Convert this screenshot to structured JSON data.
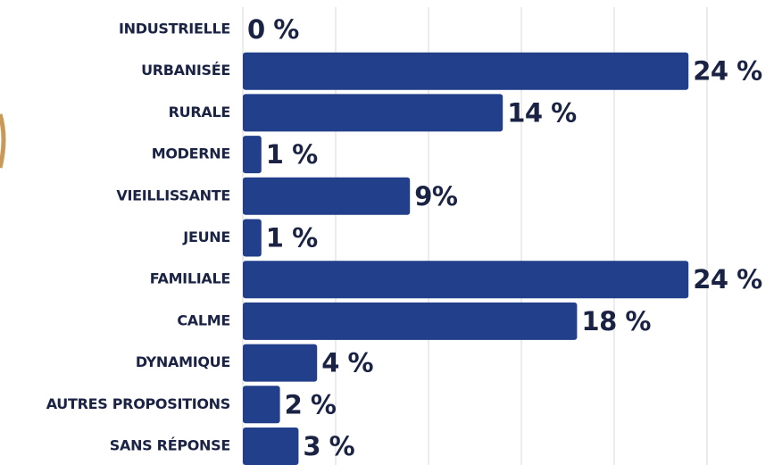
{
  "chart_data": {
    "type": "bar",
    "orientation": "horizontal",
    "categories": [
      "INDUSTRIELLE",
      "URBANISÉE",
      "RURALE",
      "MODERNE",
      "VIEILLISSANTE",
      "JEUNE",
      "FAMILIALE",
      "CALME",
      "DYNAMIQUE",
      "AUTRES PROPOSITIONS",
      "SANS RÉPONSE"
    ],
    "values": [
      0,
      24,
      14,
      1,
      9,
      1,
      24,
      18,
      4,
      2,
      3
    ],
    "value_labels": [
      "0 %",
      "24 %",
      "14 %",
      "1 %",
      "9%",
      "1 %",
      "24 %",
      "18 %",
      "4 %",
      "2 %",
      "3 %"
    ],
    "color": "#213f8a",
    "xlim": [
      0,
      25
    ],
    "xticks": [
      0,
      5,
      10,
      15,
      20,
      25
    ],
    "grid": true
  }
}
